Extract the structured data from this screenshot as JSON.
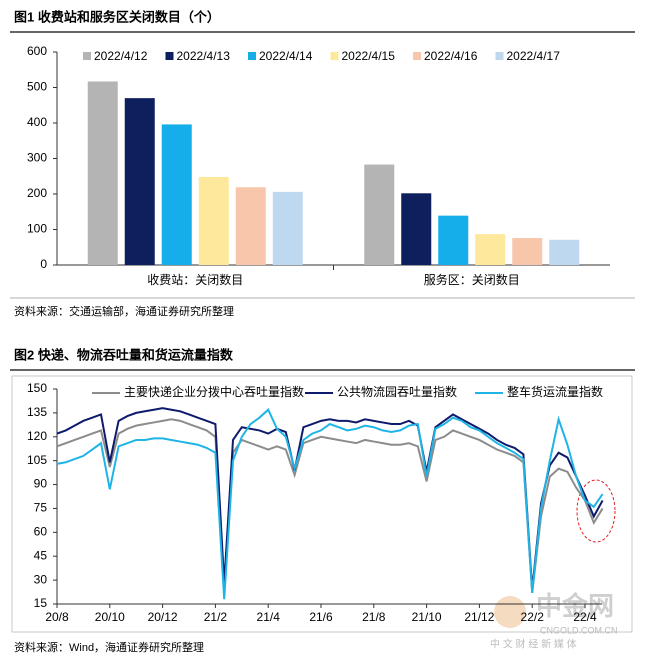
{
  "chart_data": [
    {
      "type": "bar",
      "title": "图1  收费站和服务区关闭数目（个）",
      "source": "资料来源：交通运输部，海通证券研究所整理",
      "categories": [
        "收费站：关闭数目",
        "服务区：关闭数目"
      ],
      "series": [
        {
          "name": "2022/4/12",
          "color": "#b4b4b4",
          "values": [
            517,
            283
          ]
        },
        {
          "name": "2022/4/13",
          "color": "#0d1f5c",
          "values": [
            470,
            202
          ]
        },
        {
          "name": "2022/4/14",
          "color": "#16aeea",
          "values": [
            396,
            139
          ]
        },
        {
          "name": "2022/4/15",
          "color": "#fde89c",
          "values": [
            248,
            87
          ]
        },
        {
          "name": "2022/4/16",
          "color": "#f8c6aa",
          "values": [
            219,
            76
          ]
        },
        {
          "name": "2022/4/17",
          "color": "#bed8ef",
          "values": [
            206,
            71
          ]
        }
      ],
      "ylim": [
        0,
        600
      ],
      "yticks": [
        0,
        100,
        200,
        300,
        400,
        500,
        600
      ]
    },
    {
      "type": "line",
      "title": "图2  快递、物流吞吐量和货运流量指数",
      "source": "资料来源：Wind，海通证券研究所整理",
      "x": [
        "20/8",
        null,
        null,
        null,
        null,
        null,
        "20/10",
        null,
        null,
        null,
        null,
        null,
        "20/12",
        null,
        null,
        null,
        null,
        null,
        "21/2",
        null,
        null,
        null,
        null,
        null,
        "21/4",
        null,
        null,
        null,
        null,
        null,
        "21/6",
        null,
        null,
        null,
        null,
        null,
        "21/8",
        null,
        null,
        null,
        null,
        null,
        "21/10",
        null,
        null,
        null,
        null,
        null,
        "21/12",
        null,
        null,
        null,
        null,
        null,
        "22/2",
        null,
        null,
        null,
        null,
        null,
        "22/4",
        null,
        null
      ],
      "series": [
        {
          "name": "主要快递企业分拨中心吞吐量指数",
          "color": "#8c8c8c",
          "values": [
            114,
            116,
            118,
            120,
            122,
            124,
            101,
            122,
            125,
            127,
            128,
            129,
            130,
            131,
            130,
            128,
            126,
            124,
            120,
            25,
            110,
            118,
            116,
            114,
            112,
            114,
            112,
            96,
            116,
            118,
            120,
            119,
            118,
            117,
            116,
            118,
            117,
            116,
            115,
            115,
            116,
            114,
            92,
            118,
            120,
            124,
            122,
            120,
            118,
            115,
            112,
            110,
            108,
            104,
            22,
            70,
            95,
            100,
            98,
            88,
            80,
            66,
            75
          ]
        },
        {
          "name": "公共物流园吞吐量指数",
          "color": "#0e1a6b",
          "values": [
            122,
            124,
            127,
            130,
            132,
            134,
            104,
            130,
            133,
            135,
            136,
            137,
            138,
            137,
            136,
            134,
            132,
            130,
            128,
            28,
            118,
            126,
            125,
            124,
            122,
            125,
            123,
            99,
            126,
            128,
            130,
            131,
            130,
            130,
            129,
            131,
            130,
            129,
            128,
            128,
            130,
            127,
            98,
            126,
            130,
            134,
            131,
            128,
            125,
            122,
            118,
            115,
            113,
            109,
            24,
            78,
            102,
            110,
            107,
            95,
            83,
            70,
            80
          ]
        },
        {
          "name": "整车货运流量指数",
          "color": "#1fb4e6",
          "values": [
            103,
            104,
            106,
            108,
            112,
            116,
            87,
            114,
            116,
            118,
            118,
            119,
            119,
            118,
            117,
            116,
            115,
            113,
            110,
            18,
            105,
            120,
            128,
            132,
            137,
            125,
            120,
            100,
            118,
            122,
            124,
            128,
            126,
            124,
            125,
            127,
            126,
            124,
            123,
            124,
            127,
            128,
            95,
            125,
            128,
            132,
            130,
            126,
            124,
            120,
            116,
            113,
            110,
            106,
            22,
            75,
            105,
            131,
            115,
            95,
            80,
            76,
            84
          ]
        }
      ],
      "ylim": [
        15,
        150
      ],
      "yticks": [
        15,
        30,
        45,
        60,
        75,
        90,
        105,
        120,
        135,
        150
      ]
    }
  ],
  "watermark": {
    "brand": "中金网",
    "site": "CNGOLD.COM.CN",
    "slogan": "中 文 财 经 新 媒 体"
  }
}
